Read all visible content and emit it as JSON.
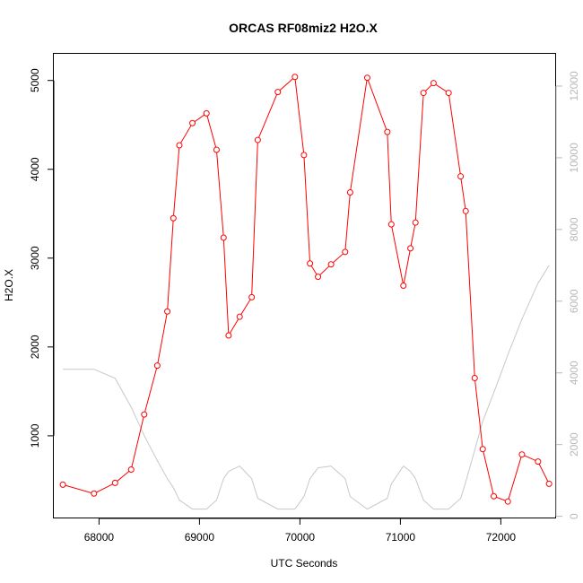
{
  "chart_data": {
    "type": "line",
    "title": "ORCAS RF08miz2 H2O.X",
    "xlabel": "UTC Seconds",
    "ylabel": "H2O.X",
    "xlim": [
      67550,
      72550
    ],
    "ylim": [
      70,
      5300
    ],
    "y2lim": [
      -60,
      12900
    ],
    "x_ticks": [
      68000,
      69000,
      70000,
      71000,
      72000
    ],
    "y_ticks": [
      1000,
      2000,
      3000,
      4000,
      5000
    ],
    "y2_ticks": [
      0,
      2000,
      4000,
      6000,
      8000,
      10000,
      12000
    ],
    "grid": false,
    "series": [
      {
        "axis": "left",
        "color": "#ff0000",
        "marker": "open-circle",
        "x": [
          67640,
          67950,
          68160,
          68320,
          68450,
          68580,
          68680,
          68740,
          68800,
          68930,
          69070,
          69170,
          69240,
          69290,
          69400,
          69520,
          69580,
          69780,
          69950,
          70040,
          70100,
          70180,
          70310,
          70450,
          70500,
          70670,
          70870,
          70910,
          71030,
          71100,
          71150,
          71230,
          71330,
          71480,
          71600,
          71650,
          71740,
          71820,
          71930,
          72070,
          72210,
          72370,
          72480
        ],
        "y": [
          450,
          350,
          470,
          620,
          1240,
          1790,
          2400,
          3450,
          4270,
          4520,
          4630,
          4220,
          3230,
          2130,
          2340,
          2560,
          4330,
          4870,
          5040,
          4160,
          2940,
          2790,
          2930,
          3070,
          3740,
          5030,
          4420,
          3380,
          2690,
          3110,
          3400,
          4860,
          4970,
          4860,
          3920,
          3530,
          1650,
          850,
          320,
          260,
          790,
          710,
          460
        ]
      },
      {
        "axis": "right",
        "color": "#c8c8c8",
        "marker": "none",
        "x": [
          67640,
          67950,
          68160,
          68320,
          68450,
          68580,
          68680,
          68740,
          68800,
          68930,
          69070,
          69170,
          69240,
          69290,
          69400,
          69520,
          69580,
          69780,
          69950,
          70040,
          70100,
          70180,
          70310,
          70450,
          70500,
          70670,
          70870,
          70910,
          71030,
          71100,
          71150,
          71230,
          71330,
          71480,
          71600,
          71650,
          71740,
          71820,
          71930,
          72070,
          72210,
          72370,
          72480
        ],
        "y": [
          4100,
          4100,
          3850,
          3050,
          2250,
          1550,
          1050,
          800,
          450,
          200,
          200,
          450,
          1050,
          1250,
          1400,
          1050,
          500,
          200,
          200,
          550,
          1050,
          1350,
          1400,
          1050,
          550,
          200,
          500,
          900,
          1400,
          1250,
          1050,
          450,
          200,
          200,
          500,
          950,
          1850,
          2650,
          3450,
          4500,
          5500,
          6500,
          7000
        ]
      }
    ]
  }
}
